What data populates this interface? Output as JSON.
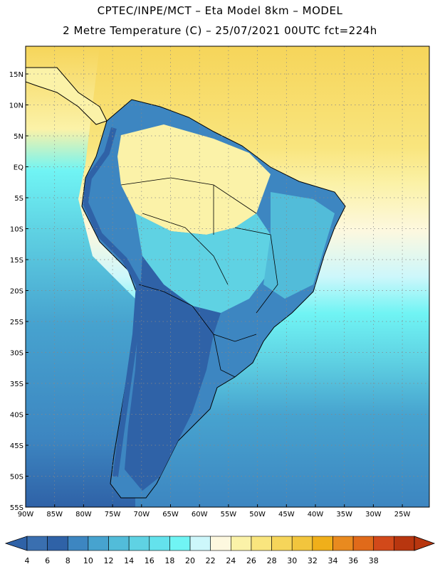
{
  "header": {
    "line1": "CPTEC/INPE/MCT –  Eta Model 8km – MODEL",
    "line2": "2 Metre Temperature (C) – 25/07/2021 00UTC fct=224h"
  },
  "axes": {
    "lat_labels": [
      "15N",
      "10N",
      "5N",
      "EQ",
      "5S",
      "10S",
      "15S",
      "20S",
      "25S",
      "30S",
      "35S",
      "40S",
      "45S",
      "50S",
      "55S"
    ],
    "lon_labels": [
      "90W",
      "85W",
      "80W",
      "75W",
      "70W",
      "65W",
      "60W",
      "55W",
      "50W",
      "45W",
      "40W",
      "35W",
      "30W",
      "25W"
    ]
  },
  "colorbar": {
    "labels": [
      "4",
      "6",
      "8",
      "10",
      "12",
      "14",
      "16",
      "18",
      "20",
      "22",
      "24",
      "26",
      "28",
      "30",
      "32",
      "34",
      "36",
      "38"
    ],
    "colors": [
      "#3a6fb0",
      "#2f62a7",
      "#3d86c1",
      "#47a3cf",
      "#52bcd9",
      "#5fd2e3",
      "#64e2ec",
      "#70f4f4",
      "#cdf7fb",
      "#fdf8df",
      "#fbf2a8",
      "#f9e57e",
      "#f6d55a",
      "#f2c53d",
      "#f0af1a",
      "#e98a1f",
      "#e06a1a",
      "#d2491a",
      "#b8360f"
    ],
    "low_arrow_color": "#2f62a7",
    "high_arrow_color": "#b8360f"
  },
  "map": {
    "ocean_north_color": "#f6d55a",
    "ocean_equator_color": "#fbf2a8",
    "ocean_south_color": "#52bcd9",
    "ocean_far_south_color": "#3d86c1",
    "grid": "dotted"
  }
}
